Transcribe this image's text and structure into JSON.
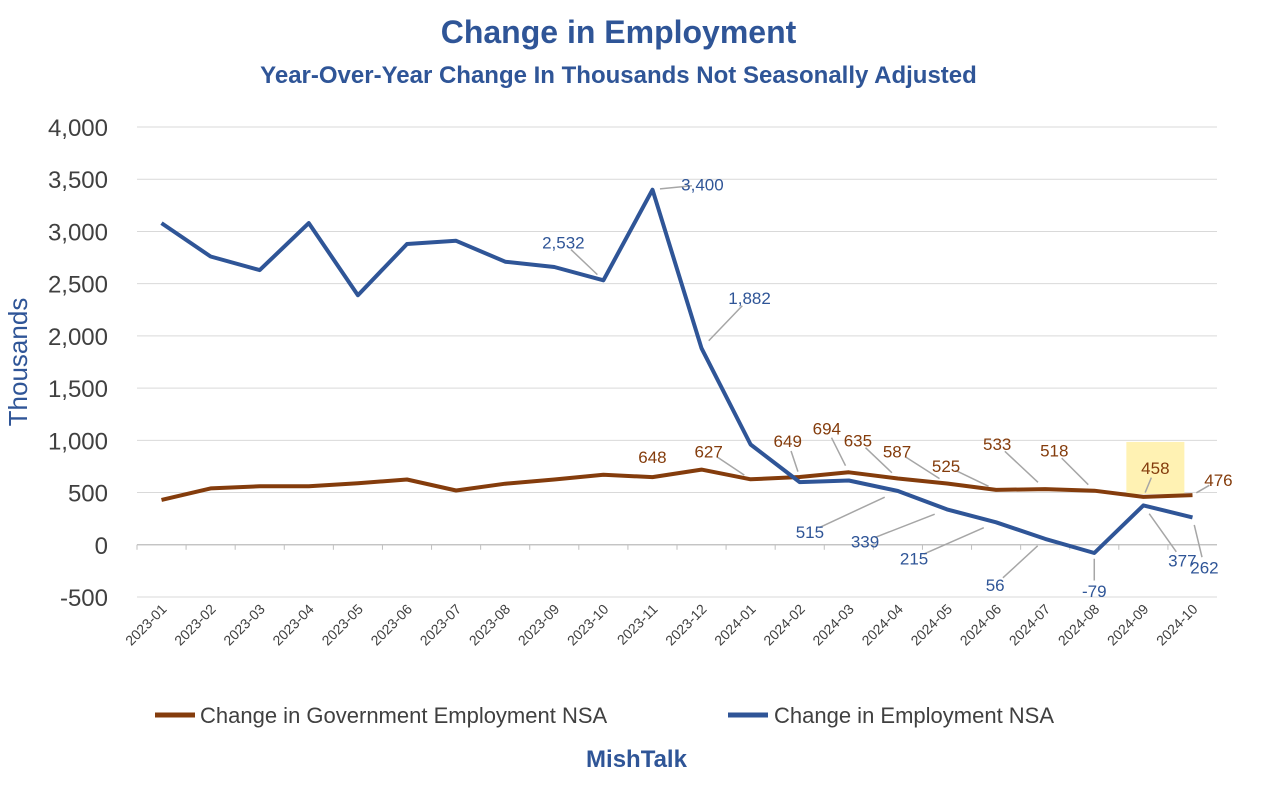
{
  "chart_data": {
    "type": "line",
    "title": "Change in Employment",
    "subtitle": "Year-Over-Year Change In Thousands Not Seasonally Adjusted",
    "ylabel": "Thousands",
    "xlabel": "",
    "ylim": [
      -500,
      4000
    ],
    "ytick_step": 500,
    "ytick_labels": [
      "-500",
      "0",
      "500",
      "1,000",
      "1,500",
      "2,000",
      "2,500",
      "3,000",
      "3,500",
      "4,000"
    ],
    "grid": true,
    "legend_position": "bottom",
    "footer": "MishTalk",
    "categories": [
      "2023-01",
      "2023-02",
      "2023-03",
      "2023-04",
      "2023-05",
      "2023-06",
      "2023-07",
      "2023-08",
      "2023-09",
      "2023-10",
      "2023-11",
      "2023-12",
      "2024-01",
      "2024-02",
      "2024-03",
      "2024-04",
      "2024-05",
      "2024-06",
      "2024-07",
      "2024-08",
      "2024-09",
      "2024-10"
    ],
    "series": [
      {
        "name": "Change in Government Employment NSA",
        "color": "#843c0c",
        "values": [
          430,
          540,
          560,
          560,
          590,
          625,
          520,
          585,
          625,
          670,
          648,
          720,
          627,
          649,
          694,
          635,
          587,
          525,
          533,
          518,
          458,
          476
        ],
        "labels": {
          "10": "648",
          "12": "627",
          "13": "649",
          "14": "694",
          "15": "635",
          "16": "587",
          "17": "525",
          "18": "533",
          "19": "518",
          "20": "458",
          "21": "476"
        }
      },
      {
        "name": "Change in Employment NSA",
        "color": "#2f5597",
        "values": [
          3080,
          2760,
          2630,
          3080,
          2390,
          2880,
          2910,
          2710,
          2660,
          2532,
          3400,
          1882,
          960,
          600,
          615,
          515,
          339,
          215,
          56,
          -79,
          377,
          262
        ],
        "labels": {
          "9": "2,532",
          "10": "3,400",
          "11": "1,882",
          "15": "515",
          "16": "339",
          "17": "215",
          "18": "56",
          "19": "-79",
          "20": "377",
          "21": "262"
        }
      }
    ],
    "highlight": {
      "series": 0,
      "index": 20,
      "color": "#fff2b3"
    }
  }
}
